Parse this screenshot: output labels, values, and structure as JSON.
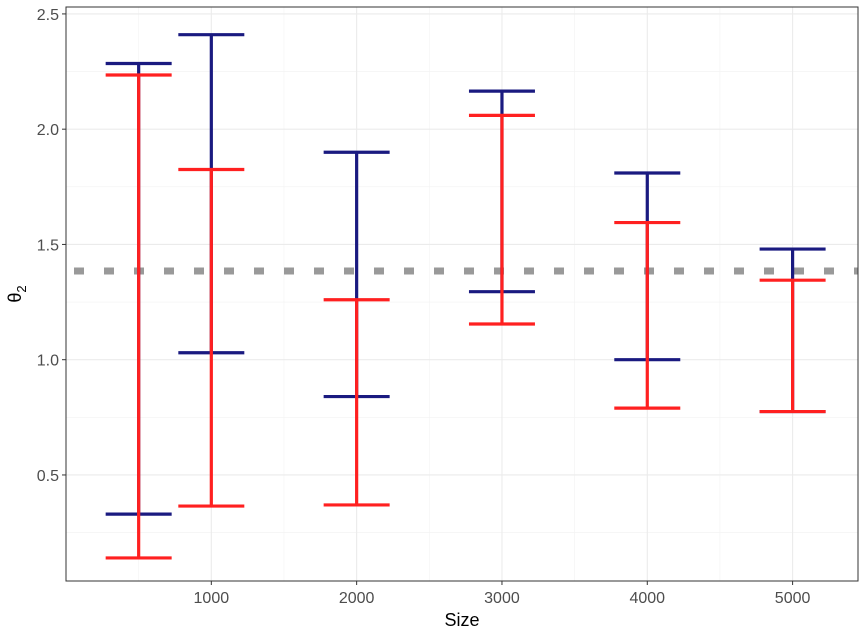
{
  "chart_data": {
    "type": "errorbar",
    "xlabel": "Size",
    "ylabel": "θ",
    "ylabel_subscript": "2",
    "xlim": [
      0,
      5450
    ],
    "ylim": [
      0.04,
      2.53
    ],
    "x_ticks": [
      1000,
      2000,
      3000,
      4000,
      5000
    ],
    "y_ticks": [
      0.5,
      1.0,
      1.5,
      2.0,
      2.5
    ],
    "y_tick_labels": [
      "0.5",
      "1.0",
      "1.5",
      "2.0",
      "2.5"
    ],
    "reference_line": 1.385,
    "grid": true,
    "series": [
      {
        "color": "#1a1a80",
        "x": [
          500,
          1000,
          2000,
          3000,
          4000,
          5000
        ],
        "lower": [
          0.33,
          1.03,
          0.84,
          1.295,
          1.0,
          0.775
        ],
        "upper": [
          2.285,
          2.41,
          1.9,
          2.165,
          1.81,
          1.48
        ]
      },
      {
        "color": "#ff2020",
        "x": [
          500,
          1000,
          2000,
          3000,
          4000,
          5000
        ],
        "lower": [
          0.14,
          0.365,
          0.37,
          1.155,
          0.79,
          0.775
        ],
        "upper": [
          2.235,
          1.825,
          1.26,
          2.06,
          1.595,
          1.345
        ]
      }
    ],
    "colors": {
      "reference_line": "#999999",
      "grid_major": "#ebebeb",
      "grid_minor": "#f2f2f2",
      "panel_border": "#333333"
    }
  }
}
